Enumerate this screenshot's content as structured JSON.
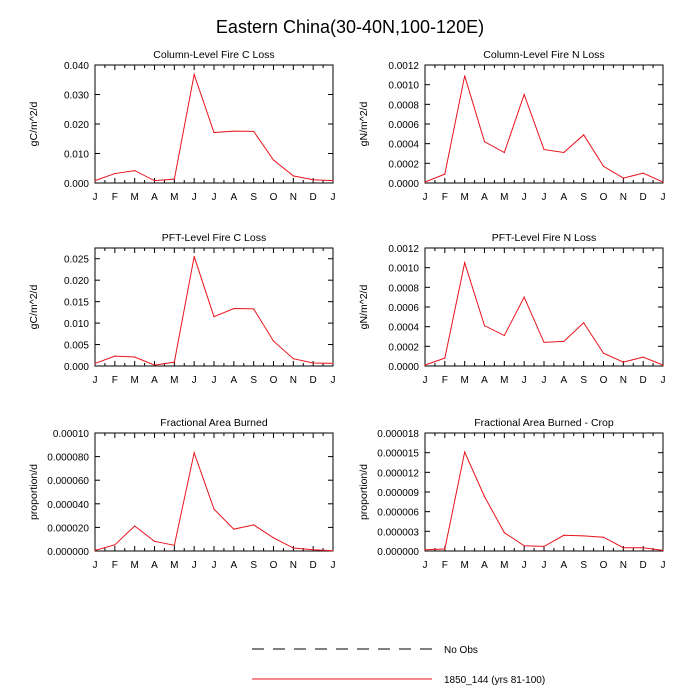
{
  "figure": {
    "title": "Eastern China(30-40N,100-120E)",
    "legend": {
      "items": [
        {
          "label": "No Obs",
          "color": "#000000",
          "dash": "dashed"
        },
        {
          "label": "1850_144 (yrs 81-100)",
          "color": "#e8141c",
          "dash": "solid"
        }
      ]
    }
  },
  "chart_data": [
    {
      "type": "line",
      "title": "Column-Level Fire C Loss",
      "ylabel": "gC/m^2/d",
      "categories": [
        "J",
        "F",
        "M",
        "A",
        "M",
        "J",
        "J",
        "A",
        "S",
        "O",
        "N",
        "D",
        "J"
      ],
      "ylim": [
        0,
        0.04
      ],
      "yticks": [
        "0.000",
        "0.010",
        "0.020",
        "0.030",
        "0.040"
      ],
      "series": [
        {
          "name": "1850_144 (yrs 81-100)",
          "color": "#e8141c",
          "values": [
            0.0008,
            0.0032,
            0.0042,
            0.0008,
            0.0013,
            0.0368,
            0.0171,
            0.0176,
            0.0175,
            0.0078,
            0.0024,
            0.0011,
            0.0008
          ]
        }
      ]
    },
    {
      "type": "line",
      "title": "Column-Level Fire N Loss",
      "ylabel": "gN/m^2/d",
      "categories": [
        "J",
        "F",
        "M",
        "A",
        "M",
        "J",
        "J",
        "A",
        "S",
        "O",
        "N",
        "D",
        "J"
      ],
      "ylim": [
        0,
        0.0012
      ],
      "yticks": [
        "0.0000",
        "0.0002",
        "0.0004",
        "0.0006",
        "0.0008",
        "0.0010",
        "0.0012"
      ],
      "series": [
        {
          "name": "1850_144 (yrs 81-100)",
          "color": "#e8141c",
          "values": [
            1e-05,
            9e-05,
            0.00109,
            0.00042,
            0.00031,
            0.0009,
            0.00034,
            0.00031,
            0.00049,
            0.00017,
            5e-05,
            0.0001,
            1e-05
          ]
        }
      ]
    },
    {
      "type": "line",
      "title": "PFT-Level Fire C Loss",
      "ylabel": "gC/m^2/d",
      "categories": [
        "J",
        "F",
        "M",
        "A",
        "M",
        "J",
        "J",
        "A",
        "S",
        "O",
        "N",
        "D",
        "J"
      ],
      "ylim": [
        0,
        0.0275
      ],
      "yticks": [
        "0.000",
        "0.005",
        "0.010",
        "0.015",
        "0.020",
        "0.025"
      ],
      "series": [
        {
          "name": "1850_144 (yrs 81-100)",
          "color": "#e8141c",
          "values": [
            0.0006,
            0.0023,
            0.0021,
            0.0002,
            0.0009,
            0.0255,
            0.0115,
            0.0134,
            0.0133,
            0.0058,
            0.0017,
            0.0007,
            0.0006
          ]
        }
      ]
    },
    {
      "type": "line",
      "title": "PFT-Level Fire N Loss",
      "ylabel": "gN/m^2/d",
      "categories": [
        "J",
        "F",
        "M",
        "A",
        "M",
        "J",
        "J",
        "A",
        "S",
        "O",
        "N",
        "D",
        "J"
      ],
      "ylim": [
        0,
        0.0012
      ],
      "yticks": [
        "0.0000",
        "0.0002",
        "0.0004",
        "0.0006",
        "0.0008",
        "0.0010",
        "0.0012"
      ],
      "series": [
        {
          "name": "1850_144 (yrs 81-100)",
          "color": "#e8141c",
          "values": [
            1e-05,
            8e-05,
            0.00105,
            0.00041,
            0.00031,
            0.0007,
            0.00024,
            0.00025,
            0.00044,
            0.00013,
            4e-05,
            9e-05,
            1e-05
          ]
        }
      ]
    },
    {
      "type": "line",
      "title": "Fractional Area Burned",
      "ylabel": "proportion/d",
      "categories": [
        "J",
        "F",
        "M",
        "A",
        "M",
        "J",
        "J",
        "A",
        "S",
        "O",
        "N",
        "D",
        "J"
      ],
      "ylim": [
        0,
        0.0001
      ],
      "yticks": [
        "0.000000",
        "0.000020",
        "0.000040",
        "0.000060",
        "0.000080",
        "0.00010"
      ],
      "series": [
        {
          "name": "1850_144 (yrs 81-100)",
          "color": "#e8141c",
          "values": [
            5e-07,
            5.2e-06,
            2.12e-05,
            8.2e-06,
            4.8e-06,
            8.32e-05,
            3.55e-05,
            1.85e-05,
            2.21e-05,
            1.12e-05,
            2.5e-06,
            1.1e-06,
            2e-07
          ]
        }
      ]
    },
    {
      "type": "line",
      "title": "Fractional Area Burned - Crop",
      "ylabel": "proportion/d",
      "categories": [
        "J",
        "F",
        "M",
        "A",
        "M",
        "J",
        "J",
        "A",
        "S",
        "O",
        "N",
        "D",
        "J"
      ],
      "ylim": [
        0,
        1.8e-05
      ],
      "yticks": [
        "0.000000",
        "0.000003",
        "0.000006",
        "0.000009",
        "0.000012",
        "0.000015",
        "0.000018"
      ],
      "series": [
        {
          "name": "1850_144 (yrs 81-100)",
          "color": "#e8141c",
          "values": [
            2e-07,
            3e-07,
            1.51e-05,
            8.3e-06,
            2.8e-06,
            8e-07,
            7e-07,
            2.4e-06,
            2.3e-06,
            2.1e-06,
            5e-07,
            5e-07,
            1e-07
          ]
        }
      ]
    }
  ]
}
